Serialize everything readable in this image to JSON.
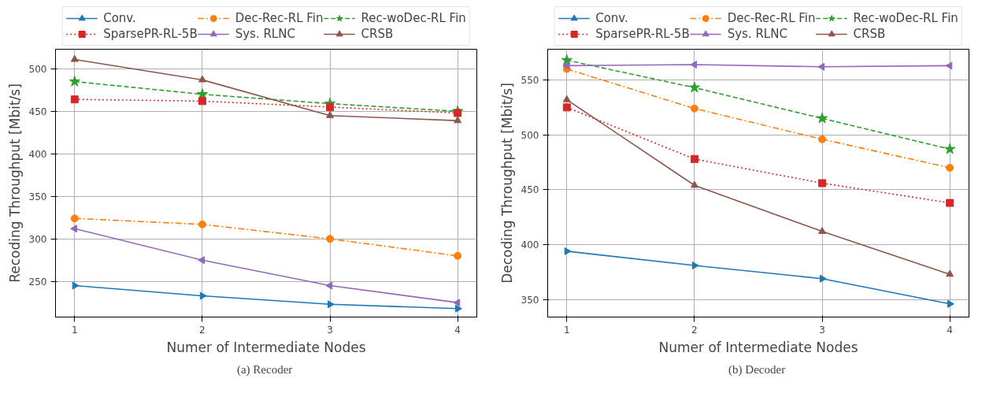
{
  "chart_data": [
    {
      "type": "line",
      "xlabel": "Numer of Intermediate Nodes",
      "ylabel": "Recoding Throughput [Mbit/s]",
      "annotations": [
        "(a)  Recoder"
      ],
      "x": [
        1,
        2,
        3,
        4
      ],
      "xlim": [
        0.85,
        4.15
      ],
      "xticks": [
        1,
        2,
        3,
        4
      ],
      "ylim": [
        208,
        523
      ],
      "yticks": [
        250,
        300,
        350,
        400,
        450,
        500
      ],
      "grid": true,
      "legend": "top",
      "series": [
        {
          "name": "Conv.",
          "color": "#1f77b4",
          "marker": "triangle_right",
          "line_style": "solid",
          "values": [
            245,
            233,
            223,
            218
          ]
        },
        {
          "name": "Dec-Rec-RL Fin",
          "color": "#ff7f0e",
          "marker": "circle",
          "line_style": "dashdot",
          "values": [
            324,
            317,
            300,
            280
          ]
        },
        {
          "name": "Rec-woDec-RL Fin",
          "color": "#2ca02c",
          "marker": "star",
          "line_style": "dashed",
          "values": [
            485,
            470,
            459,
            450
          ]
        },
        {
          "name": "SparsePR-RL-5B",
          "color": "#d62728",
          "marker": "square",
          "line_style": "dotted",
          "values": [
            464,
            462,
            455,
            448
          ]
        },
        {
          "name": "Sys. RLNC",
          "color": "#9467bd",
          "marker": "triangle_left",
          "line_style": "solid",
          "values": [
            312,
            275,
            245,
            225
          ]
        },
        {
          "name": "CRSB",
          "color": "#8c564b",
          "marker": "triangle",
          "line_style": "solid",
          "values": [
            511,
            487,
            445,
            439
          ]
        }
      ]
    },
    {
      "type": "line",
      "xlabel": "Numer of Intermediate Nodes",
      "ylabel": "Decoding Throughput [Mbit/s]",
      "annotations": [
        "(b)  Decoder"
      ],
      "x": [
        1,
        2,
        3,
        4
      ],
      "xlim": [
        0.85,
        4.15
      ],
      "xticks": [
        1,
        2,
        3,
        4
      ],
      "ylim": [
        334,
        578
      ],
      "yticks": [
        350,
        400,
        450,
        500,
        550
      ],
      "grid": true,
      "legend": "top",
      "series": [
        {
          "name": "Conv.",
          "color": "#1f77b4",
          "marker": "triangle_right",
          "line_style": "solid",
          "values": [
            394,
            381,
            369,
            346
          ]
        },
        {
          "name": "Dec-Rec-RL Fin",
          "color": "#ff7f0e",
          "marker": "circle",
          "line_style": "dashdot",
          "values": [
            560,
            524,
            496,
            470
          ]
        },
        {
          "name": "Rec-woDec-RL Fin",
          "color": "#2ca02c",
          "marker": "star",
          "line_style": "dashed",
          "values": [
            568,
            543,
            515,
            487
          ]
        },
        {
          "name": "SparsePR-RL-5B",
          "color": "#d62728",
          "marker": "square",
          "line_style": "dotted",
          "values": [
            525,
            478,
            456,
            438
          ]
        },
        {
          "name": "Sys. RLNC",
          "color": "#9467bd",
          "marker": "triangle_left",
          "line_style": "solid",
          "values": [
            563,
            564,
            562,
            563
          ]
        },
        {
          "name": "CRSB",
          "color": "#8c564b",
          "marker": "triangle",
          "line_style": "solid",
          "values": [
            532,
            454,
            412,
            373
          ]
        }
      ]
    }
  ]
}
